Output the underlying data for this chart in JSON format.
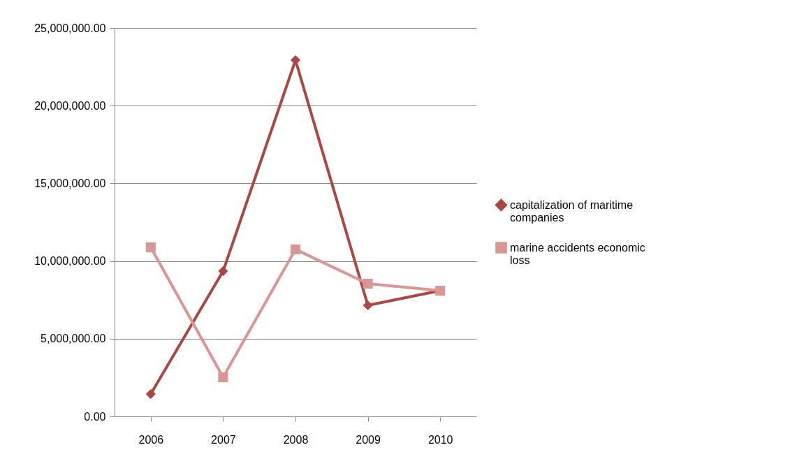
{
  "chart_data": {
    "type": "line",
    "categories": [
      "2006",
      "2007",
      "2008",
      "2009",
      "2010"
    ],
    "series": [
      {
        "name": "capitalization of maritime companies",
        "color": "#aa4643",
        "marker": "diamond",
        "values": [
          1440000,
          9350000,
          22930000,
          7150000,
          8090000
        ]
      },
      {
        "name": "marine accidents economic loss",
        "color": "#d99694",
        "marker": "square",
        "values": [
          10880000,
          2520000,
          10750000,
          8540000,
          8090000
        ]
      }
    ],
    "ylim": [
      0,
      25000000
    ],
    "yticks": [
      {
        "value": 0,
        "label": "0.00"
      },
      {
        "value": 5000000,
        "label": "5,000,000.00"
      },
      {
        "value": 10000000,
        "label": "10,000,000.00"
      },
      {
        "value": 15000000,
        "label": "15,000,000.00"
      },
      {
        "value": 20000000,
        "label": "20,000,000.00"
      },
      {
        "value": 25000000,
        "label": "25,000,000.00"
      }
    ],
    "grid": "y",
    "legend": "right",
    "line_style": "solid"
  }
}
